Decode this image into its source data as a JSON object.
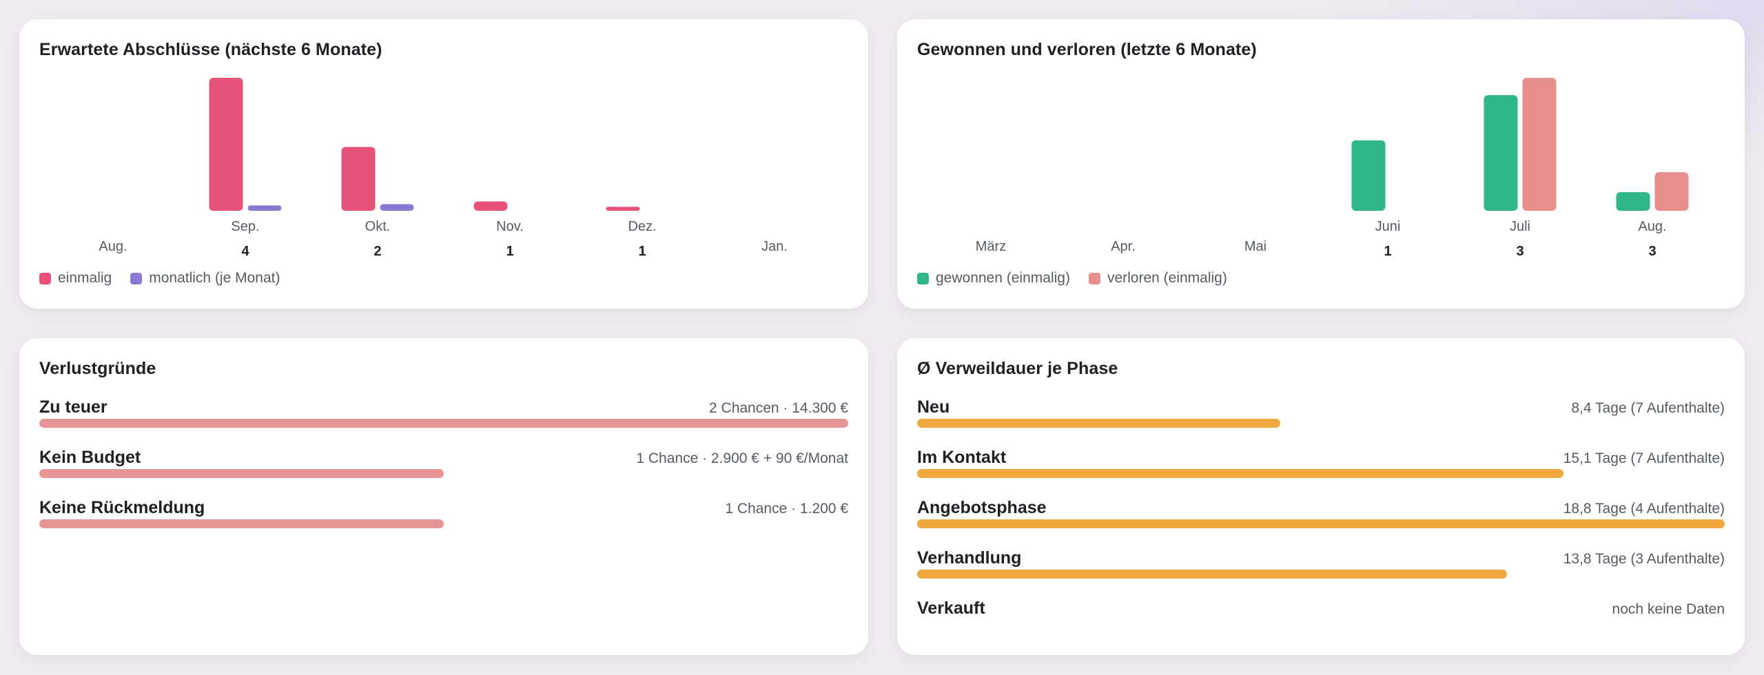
{
  "colors": {
    "einmalig": "#e8527a",
    "monatlich": "#8b78d3",
    "gewonnen": "#2fb787",
    "verloren": "#e68f8d",
    "reason_bar": "#e69494",
    "dwell_bar": "#f0a73e"
  },
  "expected": {
    "title": "Erwartete Abschlüsse (nächste 6 Monate)",
    "legend": [
      "einmalig",
      "monatlich (je Monat)"
    ]
  },
  "wonlost": {
    "title": "Gewonnen und verloren (letzte 6 Monate)",
    "legend": [
      "gewonnen (einmalig)",
      "verloren (einmalig)"
    ]
  },
  "chart_data": [
    {
      "type": "bar",
      "title": "Erwartete Abschlüsse (nächste 6 Monate)",
      "categories": [
        "Aug.",
        "Sep.",
        "Okt.",
        "Nov.",
        "Dez.",
        "Jan."
      ],
      "counts": [
        "",
        "4",
        "2",
        "1",
        "1",
        ""
      ],
      "series": [
        {
          "name": "einmalig",
          "values": [
            0,
            100,
            48,
            7,
            3,
            0
          ]
        },
        {
          "name": "monatlich (je Monat)",
          "values": [
            0,
            4,
            5,
            0,
            0,
            0
          ]
        }
      ],
      "ylim": [
        0,
        100
      ],
      "grid": false,
      "legend": "bottom-left"
    },
    {
      "type": "bar",
      "title": "Gewonnen und verloren (letzte 6 Monate)",
      "categories": [
        "März",
        "Apr.",
        "Mai",
        "Juni",
        "Juli",
        "Aug."
      ],
      "counts": [
        "",
        "",
        "",
        "1",
        "3",
        "3"
      ],
      "series": [
        {
          "name": "gewonnen (einmalig)",
          "values": [
            0,
            0,
            0,
            53,
            87,
            14
          ]
        },
        {
          "name": "verloren (einmalig)",
          "values": [
            0,
            0,
            0,
            0,
            100,
            29
          ]
        }
      ],
      "ylim": [
        0,
        100
      ],
      "grid": false,
      "legend": "bottom-left"
    }
  ],
  "reasons": {
    "title": "Verlustgründe",
    "items": [
      {
        "label": "Zu teuer",
        "meta": "2 Chancen · 14.300 €",
        "share": 1.0
      },
      {
        "label": "Kein Budget",
        "meta": "1 Chance · 2.900 € + 90 €/Monat",
        "share": 0.5
      },
      {
        "label": "Keine Rückmeldung",
        "meta": "1 Chance · 1.200 €",
        "share": 0.5
      }
    ]
  },
  "dwell": {
    "title": "Ø Verweildauer je Phase",
    "items": [
      {
        "label": "Neu",
        "meta": "8,4 Tage (7 Aufenthalte)",
        "share": 0.45
      },
      {
        "label": "Im Kontakt",
        "meta": "15,1 Tage (7 Aufenthalte)",
        "share": 0.8
      },
      {
        "label": "Angebotsphase",
        "meta": "18,8 Tage (4 Aufenthalte)",
        "share": 1.0
      },
      {
        "label": "Verhandlung",
        "meta": "13,8 Tage (3 Aufenthalte)",
        "share": 0.73
      },
      {
        "label": "Verkauft",
        "meta": "noch keine Daten",
        "share": null
      }
    ]
  }
}
